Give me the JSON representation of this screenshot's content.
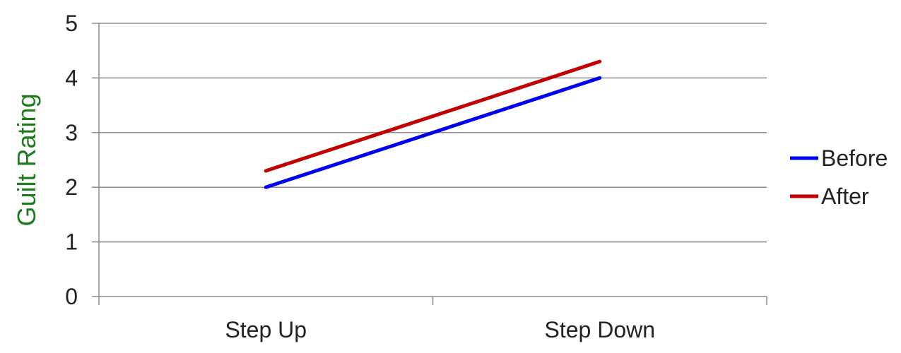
{
  "chart_data": {
    "type": "line",
    "title": "",
    "xlabel": "",
    "ylabel": "Guilt Rating",
    "ylabel_color": "#1f7a1f",
    "categories": [
      "Step Up",
      "Step Down"
    ],
    "ylim": [
      0,
      5
    ],
    "yticks": [
      "0",
      "1",
      "2",
      "3",
      "4",
      "5"
    ],
    "grid": true,
    "legend_position": "right",
    "series": [
      {
        "name": "Before",
        "color": "#0000ee",
        "values": [
          2.0,
          4.0
        ]
      },
      {
        "name": "After",
        "color": "#c00000",
        "values": [
          2.3,
          4.3
        ]
      }
    ]
  }
}
